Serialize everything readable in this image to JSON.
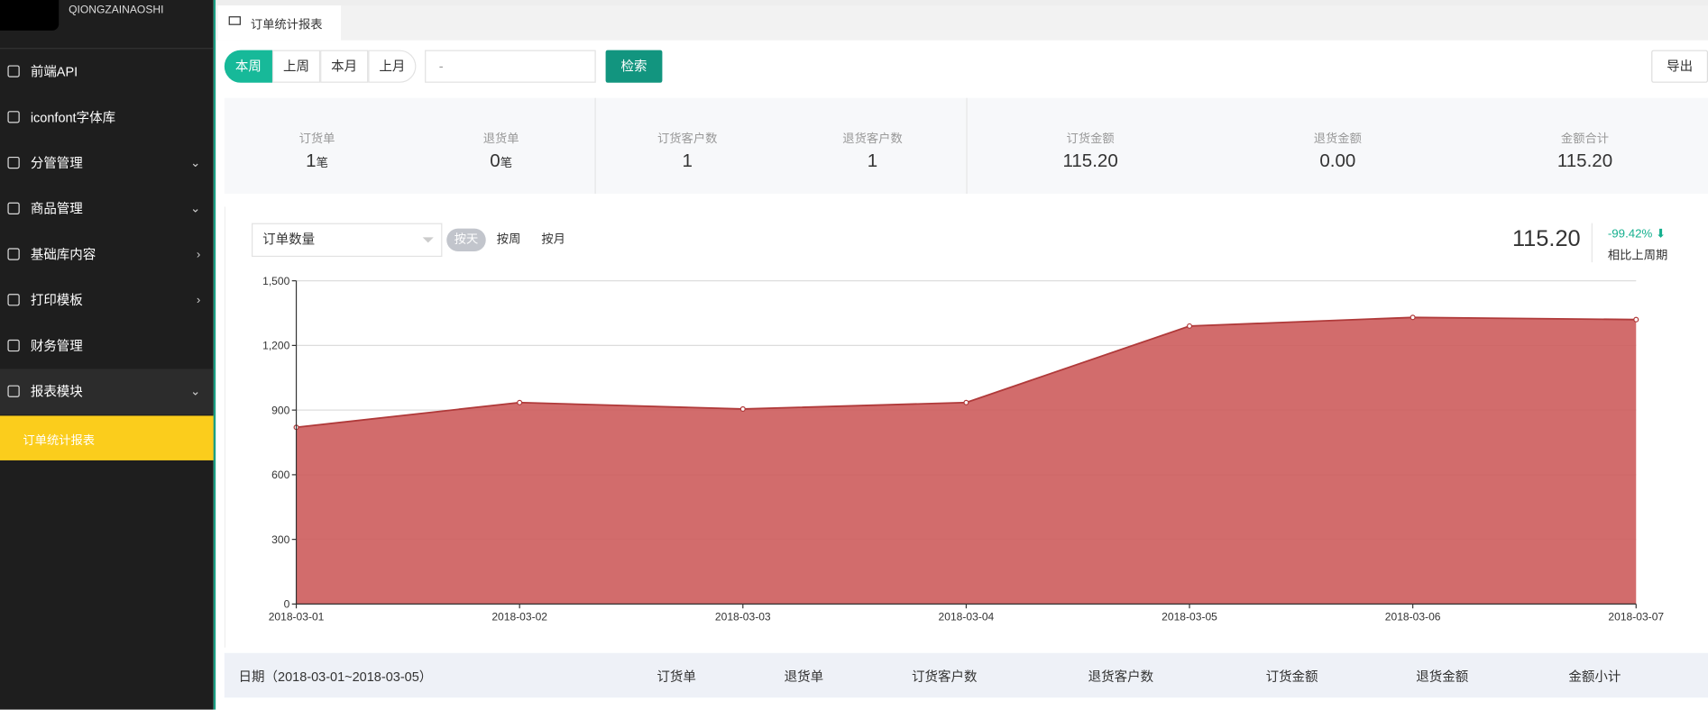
{
  "sidebar": {
    "brand": "QIONGZAINAOSHI",
    "menu": [
      {
        "label": "前端API"
      },
      {
        "label": "iconfont字体库"
      },
      {
        "label": "分管管理",
        "expand": "down"
      },
      {
        "label": "商品管理",
        "expand": "down"
      },
      {
        "label": "基础库内容",
        "expand": "right"
      },
      {
        "label": "打印模板",
        "expand": "right"
      },
      {
        "label": "财务管理"
      },
      {
        "label": "报表模块",
        "expand": "down"
      }
    ],
    "active": "订单统计报表"
  },
  "tab": "订单统计报表",
  "filters": {
    "periods": [
      "本周",
      "上周",
      "本月",
      "上月"
    ],
    "date_placeholder": "-",
    "search": "检索",
    "export": "导出"
  },
  "stats": [
    {
      "label": "订货单",
      "value": "1",
      "unit": "笔"
    },
    {
      "label": "退货单",
      "value": "0",
      "unit": "笔"
    },
    {
      "label": "订货客户数",
      "value": "1"
    },
    {
      "label": "退货客户数",
      "value": "1"
    },
    {
      "label": "订货金额",
      "value": "115.20"
    },
    {
      "label": "退货金额",
      "value": "0.00"
    },
    {
      "label": "金额合计",
      "value": "115.20"
    }
  ],
  "chart_panel": {
    "metric": "订单数量",
    "granularity": [
      "按天",
      "按周",
      "按月"
    ],
    "total": "115.20",
    "change": "-99.42%",
    "change_label": "相比上周期"
  },
  "chart_data": {
    "type": "area",
    "categories": [
      "2018-03-01",
      "2018-03-02",
      "2018-03-03",
      "2018-03-04",
      "2018-03-05",
      "2018-03-06",
      "2018-03-07"
    ],
    "values": [
      820,
      935,
      905,
      935,
      1290,
      1330,
      1320
    ],
    "color": "#cd5c5c",
    "ylim": [
      0,
      1500
    ],
    "yticks": [
      0,
      300,
      600,
      900,
      {
        "value": 1200,
        "label": "1,200"
      },
      {
        "value": 1500,
        "label": "1,500"
      }
    ],
    "grid": true
  },
  "table": {
    "headers": [
      "日期（2018-03-01~2018-03-05）",
      "订货单",
      "退货单",
      "订货客户数",
      "退货客户数",
      "订货金额",
      "退货金额",
      "金额小计"
    ]
  }
}
